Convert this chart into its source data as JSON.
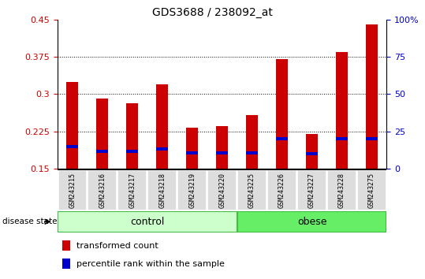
{
  "title": "GDS3688 / 238092_at",
  "samples": [
    "GSM243215",
    "GSM243216",
    "GSM243217",
    "GSM243218",
    "GSM243219",
    "GSM243220",
    "GSM243225",
    "GSM243226",
    "GSM243227",
    "GSM243228",
    "GSM243275"
  ],
  "transformed_count": [
    0.325,
    0.292,
    0.282,
    0.32,
    0.232,
    0.236,
    0.258,
    0.37,
    0.22,
    0.385,
    0.44
  ],
  "percentile_rank": [
    0.195,
    0.185,
    0.185,
    0.19,
    0.182,
    0.182,
    0.182,
    0.21,
    0.18,
    0.21,
    0.21
  ],
  "bar_bottom": 0.15,
  "ylim_left": [
    0.15,
    0.45
  ],
  "ylim_right": [
    0,
    100
  ],
  "yticks_left": [
    0.15,
    0.225,
    0.3,
    0.375,
    0.45
  ],
  "yticks_right": [
    0,
    25,
    50,
    75,
    100
  ],
  "bar_color": "#cc0000",
  "percentile_color": "#0000cc",
  "control_n": 6,
  "obese_n": 5,
  "control_label": "control",
  "obese_label": "obese",
  "disease_state_label": "disease state",
  "legend_transformed": "transformed count",
  "legend_percentile": "percentile rank within the sample",
  "control_color": "#ccffcc",
  "obese_color": "#66ee66",
  "tick_label_color_left": "#cc0000",
  "tick_label_color_right": "#0000cc",
  "bar_width": 0.4,
  "percentile_bar_height": 0.006
}
